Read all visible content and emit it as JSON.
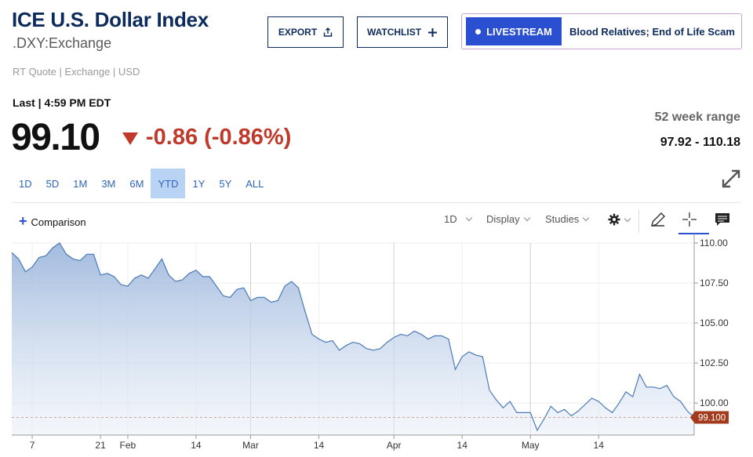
{
  "header": {
    "title": "ICE U.S. Dollar Index",
    "symbol": ".DXY:Exchange",
    "quote_meta": "RT Quote | Exchange | USD",
    "export_label": "EXPORT",
    "watchlist_label": "WATCHLIST",
    "livestream_label": "LIVESTREAM",
    "livestream_title": "Blood Relatives; End of Life Scam"
  },
  "quote": {
    "last_time": "Last | 4:59 PM EDT",
    "price": "99.10",
    "change": "-0.86 (-0.86%)",
    "range_label": "52 week range",
    "range_value": "97.92 - 110.18"
  },
  "periods": [
    {
      "label": "1D",
      "active": false
    },
    {
      "label": "5D",
      "active": false
    },
    {
      "label": "1M",
      "active": false
    },
    {
      "label": "3M",
      "active": false
    },
    {
      "label": "6M",
      "active": false
    },
    {
      "label": "YTD",
      "active": true
    },
    {
      "label": "1Y",
      "active": false
    },
    {
      "label": "5Y",
      "active": false
    },
    {
      "label": "ALL",
      "active": false
    }
  ],
  "toolbar": {
    "comparison_label": "Comparison",
    "interval_label": "1D",
    "display_label": "Display",
    "studies_label": "Studies"
  },
  "colors": {
    "brand": "#0c2b5c",
    "accent": "#2a4fd0",
    "down": "#c0392b",
    "line": "#4a7ab8",
    "last_tag": "#a33a1c"
  },
  "chart_data": {
    "type": "area",
    "ylim": [
      98,
      110
    ],
    "yticks": [
      110.0,
      107.5,
      105.0,
      102.5,
      100.0
    ],
    "ytick_labels": [
      "110.00",
      "107.50",
      "105.00",
      "102.50",
      "100.00"
    ],
    "xtick_labels": [
      "7",
      "21",
      "Feb",
      "14",
      "Mar",
      "14",
      "Apr",
      "14",
      "May",
      "14"
    ],
    "xtick_index": [
      3,
      13,
      17,
      27,
      35,
      45,
      56,
      66,
      76,
      86
    ],
    "major_gridlines_at": [
      "Mar",
      "Apr",
      "May"
    ],
    "last_value": 99.1,
    "last_value_label": "99.100",
    "grid": true,
    "x": [
      "Jan 2",
      "Jan 3",
      "Jan 6",
      "Jan 7",
      "Jan 8",
      "Jan 9",
      "Jan 10",
      "Jan 13",
      "Jan 14",
      "Jan 15",
      "Jan 16",
      "Jan 17",
      "Jan 20",
      "Jan 21",
      "Jan 22",
      "Jan 23",
      "Jan 24",
      "Jan 27",
      "Jan 28",
      "Jan 29",
      "Jan 30",
      "Jan 31",
      "Feb 3",
      "Feb 4",
      "Feb 5",
      "Feb 6",
      "Feb 7",
      "Feb 10",
      "Feb 11",
      "Feb 12",
      "Feb 13",
      "Feb 14",
      "Feb 17",
      "Feb 18",
      "Feb 19",
      "Feb 20",
      "Feb 21",
      "Feb 24",
      "Feb 25",
      "Feb 26",
      "Feb 27",
      "Feb 28",
      "Mar 3",
      "Mar 4",
      "Mar 5",
      "Mar 6",
      "Mar 7",
      "Mar 10",
      "Mar 11",
      "Mar 12",
      "Mar 13",
      "Mar 14",
      "Mar 17",
      "Mar 18",
      "Mar 19",
      "Mar 20",
      "Mar 21",
      "Mar 24",
      "Mar 25",
      "Mar 26",
      "Mar 27",
      "Mar 28",
      "Mar 31",
      "Apr 1",
      "Apr 2",
      "Apr 3",
      "Apr 4",
      "Apr 7",
      "Apr 8",
      "Apr 9",
      "Apr 10",
      "Apr 11",
      "Apr 14",
      "Apr 15",
      "Apr 16",
      "Apr 17",
      "Apr 18",
      "Apr 21",
      "Apr 22",
      "Apr 23",
      "Apr 24",
      "Apr 25",
      "Apr 28",
      "Apr 29",
      "Apr 30",
      "May 1",
      "May 2",
      "May 5",
      "May 6",
      "May 7",
      "May 8",
      "May 9",
      "May 12",
      "May 13",
      "May 14",
      "May 15",
      "May 16",
      "May 19",
      "May 20",
      "May 21",
      "May 22"
    ],
    "values": [
      109.4,
      109.0,
      108.2,
      108.5,
      109.1,
      109.2,
      109.7,
      110.0,
      109.3,
      109.0,
      108.9,
      109.3,
      109.3,
      108.0,
      108.1,
      107.9,
      107.4,
      107.3,
      107.8,
      108.0,
      107.8,
      108.4,
      109.0,
      108.0,
      107.6,
      107.7,
      108.1,
      108.3,
      107.9,
      107.9,
      107.3,
      106.7,
      106.6,
      107.1,
      107.2,
      106.4,
      106.6,
      106.6,
      106.3,
      106.4,
      107.3,
      107.6,
      107.2,
      105.7,
      104.3,
      104.0,
      103.8,
      103.9,
      103.3,
      103.6,
      103.8,
      103.7,
      103.4,
      103.3,
      103.4,
      103.8,
      104.1,
      104.3,
      104.2,
      104.5,
      104.3,
      104.0,
      104.2,
      104.2,
      104.0,
      102.1,
      102.9,
      103.2,
      103.0,
      102.9,
      100.8,
      100.2,
      99.7,
      100.1,
      99.4,
      99.4,
      99.4,
      98.3,
      99.0,
      99.8,
      99.4,
      99.6,
      99.2,
      99.5,
      99.9,
      100.3,
      100.1,
      99.7,
      99.4,
      100.0,
      100.7,
      100.4,
      101.8,
      101.0,
      101.0,
      100.9,
      101.1,
      100.4,
      100.1,
      99.5,
      99.1
    ]
  }
}
